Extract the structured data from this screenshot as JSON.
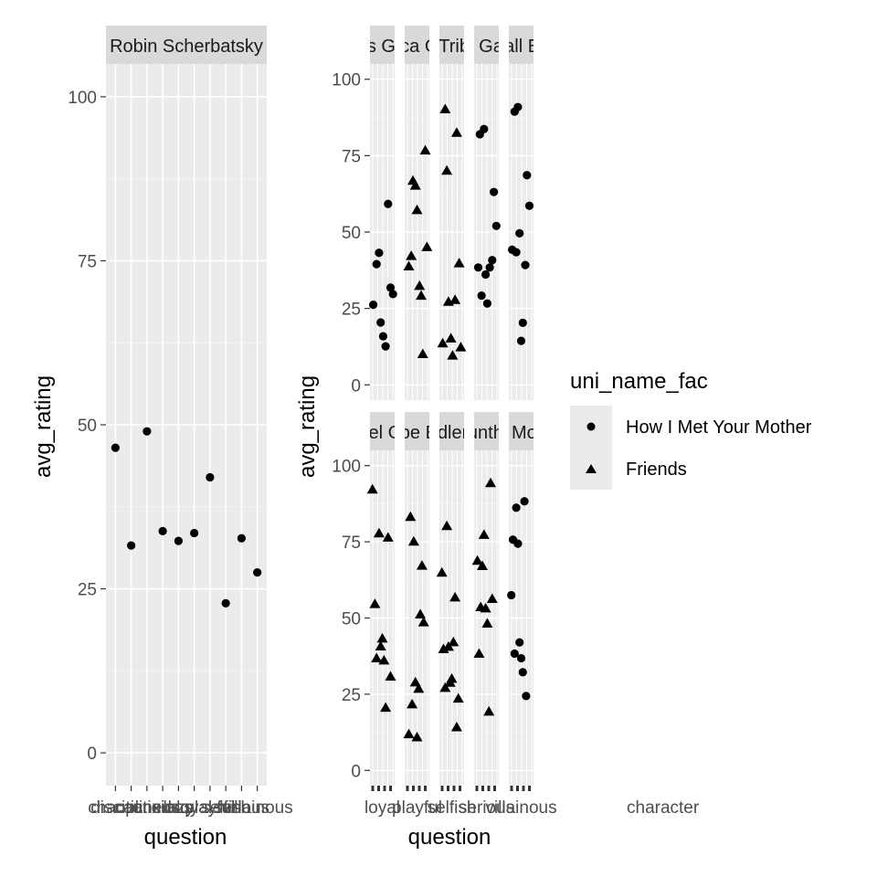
{
  "chart_data": {
    "type": "scatter",
    "ylabel": "avg_rating",
    "xlabel": "question",
    "ylim": [
      -5,
      105
    ],
    "yticks": [
      0,
      25,
      50,
      75,
      100
    ],
    "grid": true,
    "legend": {
      "title": "uni_name_fac",
      "placement": "right",
      "entries": [
        {
          "label": "How I Met Your Mother",
          "shape": "circle"
        },
        {
          "label": "Friends",
          "shape": "triangle"
        }
      ]
    },
    "x_tick_overflow_text": "character",
    "left_panel": {
      "strip": "Robin Scherbatsky",
      "x_tick_labels": [
        "chaotic",
        "disciplined",
        "cautious",
        "anxious",
        "lazy",
        "loyal",
        "playful",
        "selfish",
        "serious",
        "villainous"
      ],
      "series": [
        {
          "name": "How I Met Your Mother",
          "points": [
            [
              1,
              46.5
            ],
            [
              2,
              31.6
            ],
            [
              3,
              49
            ],
            [
              4,
              33.8
            ],
            [
              5,
              32.3
            ],
            [
              6,
              33.5
            ],
            [
              7,
              42
            ],
            [
              8,
              22.8
            ],
            [
              9,
              32.7
            ],
            [
              10,
              27.5
            ]
          ]
        }
      ]
    },
    "right_panels": [
      {
        "strip": "Ross Geller",
        "series": [
          {
            "name": "How I Met Your Mother",
            "points": [
              [
                0.7,
                26.2
              ],
              [
                1.1,
                39.5
              ],
              [
                1.4,
                43.2
              ],
              [
                1.6,
                20.4
              ],
              [
                1.9,
                15.9
              ],
              [
                2.2,
                12.6
              ],
              [
                2.5,
                59.2
              ],
              [
                2.8,
                31.8
              ],
              [
                3.1,
                29.7
              ]
            ]
          }
        ]
      },
      {
        "strip": "Monica Geller",
        "series": [
          {
            "name": "Friends",
            "points": [
              [
                0.8,
                38.8
              ],
              [
                1.1,
                42.2
              ],
              [
                1.3,
                66.8
              ],
              [
                1.6,
                65.2
              ],
              [
                1.8,
                57.2
              ],
              [
                2.1,
                32.4
              ],
              [
                2.3,
                29.2
              ],
              [
                2.5,
                10.1
              ],
              [
                2.8,
                76.7
              ],
              [
                3.0,
                45.1
              ]
            ]
          }
        ]
      },
      {
        "strip": "Joey Tribbiani",
        "series": [
          {
            "name": "Friends",
            "points": [
              [
                0.7,
                13.6
              ],
              [
                1.0,
                90.2
              ],
              [
                1.2,
                70.1
              ],
              [
                1.4,
                27.2
              ],
              [
                1.7,
                15.2
              ],
              [
                1.9,
                9.6
              ],
              [
                2.2,
                27.8
              ],
              [
                2.4,
                82.5
              ],
              [
                2.7,
                39.8
              ],
              [
                2.9,
                12.3
              ]
            ]
          }
        ]
      },
      {
        "strip": "Alan Garner",
        "series": [
          {
            "name": "How I Met Your Mother",
            "points": [
              [
                0.8,
                38.4
              ],
              [
                1.0,
                82
              ],
              [
                1.2,
                29.2
              ],
              [
                1.5,
                83.7
              ],
              [
                1.7,
                36.1
              ],
              [
                1.9,
                26.6
              ],
              [
                2.2,
                38.4
              ],
              [
                2.5,
                40.8
              ],
              [
                2.7,
                63.1
              ],
              [
                3.0,
                52
              ]
            ]
          }
        ]
      },
      {
        "strip": "Marshall Eriksen",
        "series": [
          {
            "name": "How I Met Your Mother",
            "points": [
              [
                0.7,
                44.2
              ],
              [
                1.0,
                89.4
              ],
              [
                1.2,
                43.4
              ],
              [
                1.4,
                90.9
              ],
              [
                1.6,
                49.6
              ],
              [
                1.8,
                14.4
              ],
              [
                2.0,
                20.3
              ],
              [
                2.3,
                39.2
              ],
              [
                2.5,
                68.6
              ],
              [
                2.8,
                58.6
              ]
            ]
          }
        ]
      },
      {
        "strip": "Rachel Green",
        "series": [
          {
            "name": "Friends",
            "points": [
              [
                0.6,
                92.2
              ],
              [
                0.9,
                54.6
              ],
              [
                1.1,
                36.8
              ],
              [
                1.4,
                77.8
              ],
              [
                1.6,
                40.7
              ],
              [
                1.8,
                43.3
              ],
              [
                2.0,
                36.1
              ],
              [
                2.2,
                20.6
              ],
              [
                2.5,
                76.4
              ],
              [
                2.8,
                30.8
              ]
            ]
          }
        ]
      },
      {
        "strip": "Phoebe Buffay",
        "series": [
          {
            "name": "Friends",
            "points": [
              [
                0.8,
                11.9
              ],
              [
                1.0,
                83.2
              ],
              [
                1.2,
                21.7
              ],
              [
                1.4,
                75.1
              ],
              [
                1.6,
                28.9
              ],
              [
                1.8,
                10.9
              ],
              [
                2.0,
                26.8
              ],
              [
                2.2,
                51.2
              ],
              [
                2.4,
                67.2
              ],
              [
                2.6,
                48.6
              ]
            ]
          }
        ]
      },
      {
        "strip": "Chandler Bing",
        "series": [
          {
            "name": "Friends",
            "points": [
              [
                0.6,
                64.9
              ],
              [
                0.8,
                39.8
              ],
              [
                1.0,
                27.1
              ],
              [
                1.2,
                80.2
              ],
              [
                1.4,
                40.6
              ],
              [
                1.6,
                28.8
              ],
              [
                1.8,
                30.1
              ],
              [
                2.0,
                42.1
              ],
              [
                2.2,
                56.8
              ],
              [
                2.4,
                14.2
              ],
              [
                2.6,
                23.6
              ]
            ]
          }
        ]
      },
      {
        "strip": "Gunther",
        "series": [
          {
            "name": "Friends",
            "points": [
              [
                0.7,
                68.8
              ],
              [
                0.9,
                38.3
              ],
              [
                1.1,
                53.6
              ],
              [
                1.3,
                67.1
              ],
              [
                1.5,
                77.3
              ],
              [
                1.7,
                53.2
              ],
              [
                1.9,
                48.2
              ],
              [
                2.1,
                19.3
              ],
              [
                2.3,
                94.3
              ],
              [
                2.5,
                56.3
              ]
            ]
          }
        ]
      },
      {
        "strip": "Ted Mosby",
        "series": [
          {
            "name": "How I Met Your Mother",
            "points": [
              [
                0.6,
                57.5
              ],
              [
                0.8,
                75.7
              ],
              [
                1.0,
                38.3
              ],
              [
                1.2,
                86.2
              ],
              [
                1.4,
                74.4
              ],
              [
                1.6,
                42
              ],
              [
                1.8,
                36.8
              ],
              [
                2.0,
                32.2
              ],
              [
                2.2,
                88.3
              ],
              [
                2.4,
                24.4
              ]
            ]
          }
        ]
      }
    ]
  }
}
